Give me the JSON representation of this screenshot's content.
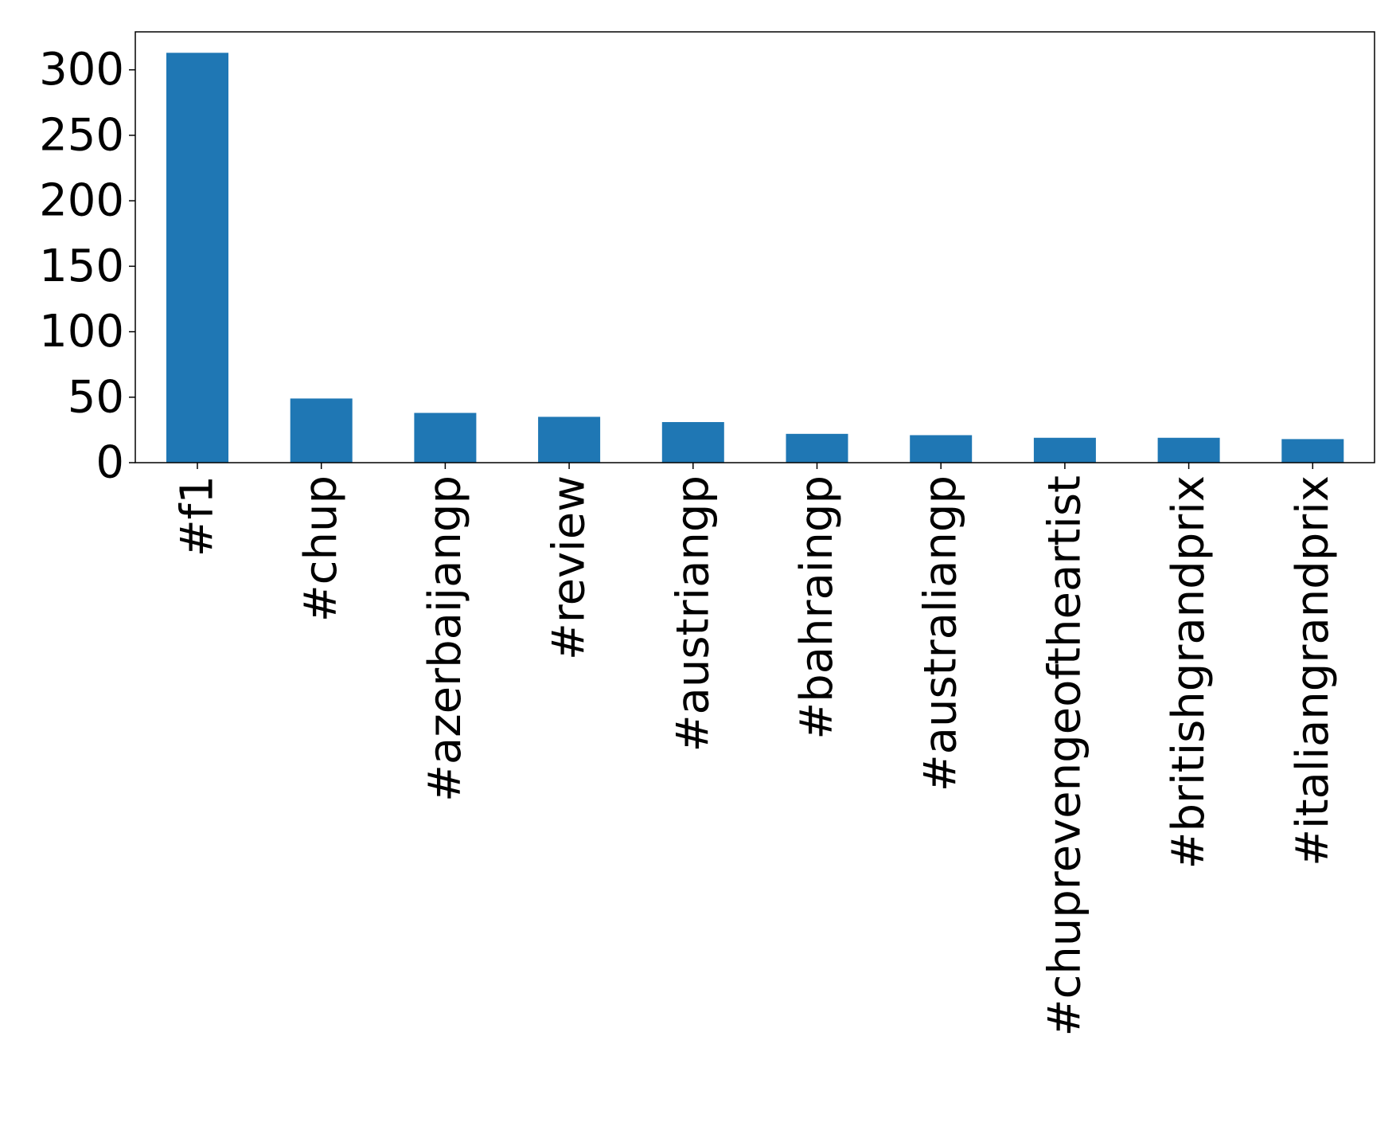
{
  "chart_data": {
    "type": "bar",
    "title": "",
    "xlabel": "",
    "ylabel": "",
    "categories": [
      "#f1",
      "#chup",
      "#azerbaijangp",
      "#review",
      "#austriangp",
      "#bahraingp",
      "#australiangp",
      "#chuprevengeoftheartist",
      "#britishgrandprix",
      "#italiangrandprix"
    ],
    "values": [
      313,
      49,
      38,
      35,
      31,
      22,
      21,
      19,
      19,
      18
    ],
    "ylim": [
      0,
      329
    ],
    "yticks": [
      0,
      50,
      100,
      150,
      200,
      250,
      300
    ],
    "bar_color": "#1f77b4",
    "grid": false,
    "legend": "none"
  }
}
